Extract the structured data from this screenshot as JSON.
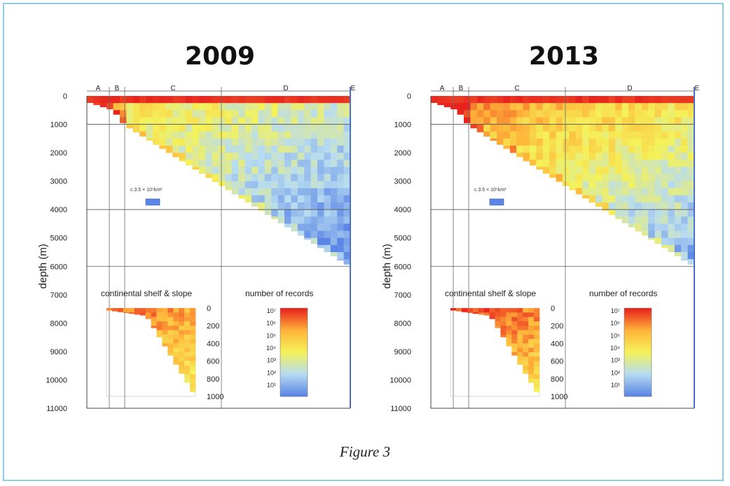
{
  "caption": "Figure 3",
  "colors": {
    "frame": "#8ccfe0",
    "scale_low": "#5b86e6",
    "scale_mid_low": "#b8dcf0",
    "scale_mid": "#f4f25a",
    "scale_mid_high": "#ffb43a",
    "scale_high": "#e8231e",
    "marker": "#5b86e6"
  },
  "chart_data": [
    {
      "type": "heatmap",
      "title": "2009",
      "ylabel": "depth (m)",
      "y_ticks": [
        "0",
        "1000",
        "2000",
        "3000",
        "4000",
        "5000",
        "6000",
        "7000",
        "8000",
        "9000",
        "10000",
        "11000"
      ],
      "ylim": [
        0,
        11000
      ],
      "zones": [
        "A",
        "B",
        "C",
        "D",
        "E"
      ],
      "scale_annotation": "c.3.5 × 10⁵km³",
      "inset": {
        "title": "continental shelf & slope",
        "y_ticks": [
          "0",
          "200",
          "400",
          "600",
          "800",
          "1000"
        ]
      },
      "colorbar": {
        "title": "number of records",
        "ticks": [
          "10⁷",
          "10⁶",
          "10⁵",
          "10⁴",
          "10³",
          "10²",
          "10¹"
        ]
      },
      "intensity_level": 0.0
    },
    {
      "type": "heatmap",
      "title": "2013",
      "ylabel": "depth (m)",
      "y_ticks": [
        "0",
        "1000",
        "2000",
        "3000",
        "4000",
        "5000",
        "6000",
        "7000",
        "8000",
        "9000",
        "10000",
        "11000"
      ],
      "ylim": [
        0,
        11000
      ],
      "zones": [
        "A",
        "B",
        "C",
        "D",
        "E"
      ],
      "scale_annotation": "c.3.5 × 10⁵km³",
      "inset": {
        "title": "continental shelf & slope",
        "y_ticks": [
          "0",
          "200",
          "400",
          "600",
          "800",
          "1000"
        ]
      },
      "colorbar": {
        "title": "number of records",
        "ticks": [
          "10⁷",
          "10⁶",
          "10⁵",
          "10⁴",
          "10³",
          "10²",
          "10¹"
        ]
      },
      "intensity_level": 0.22
    }
  ]
}
